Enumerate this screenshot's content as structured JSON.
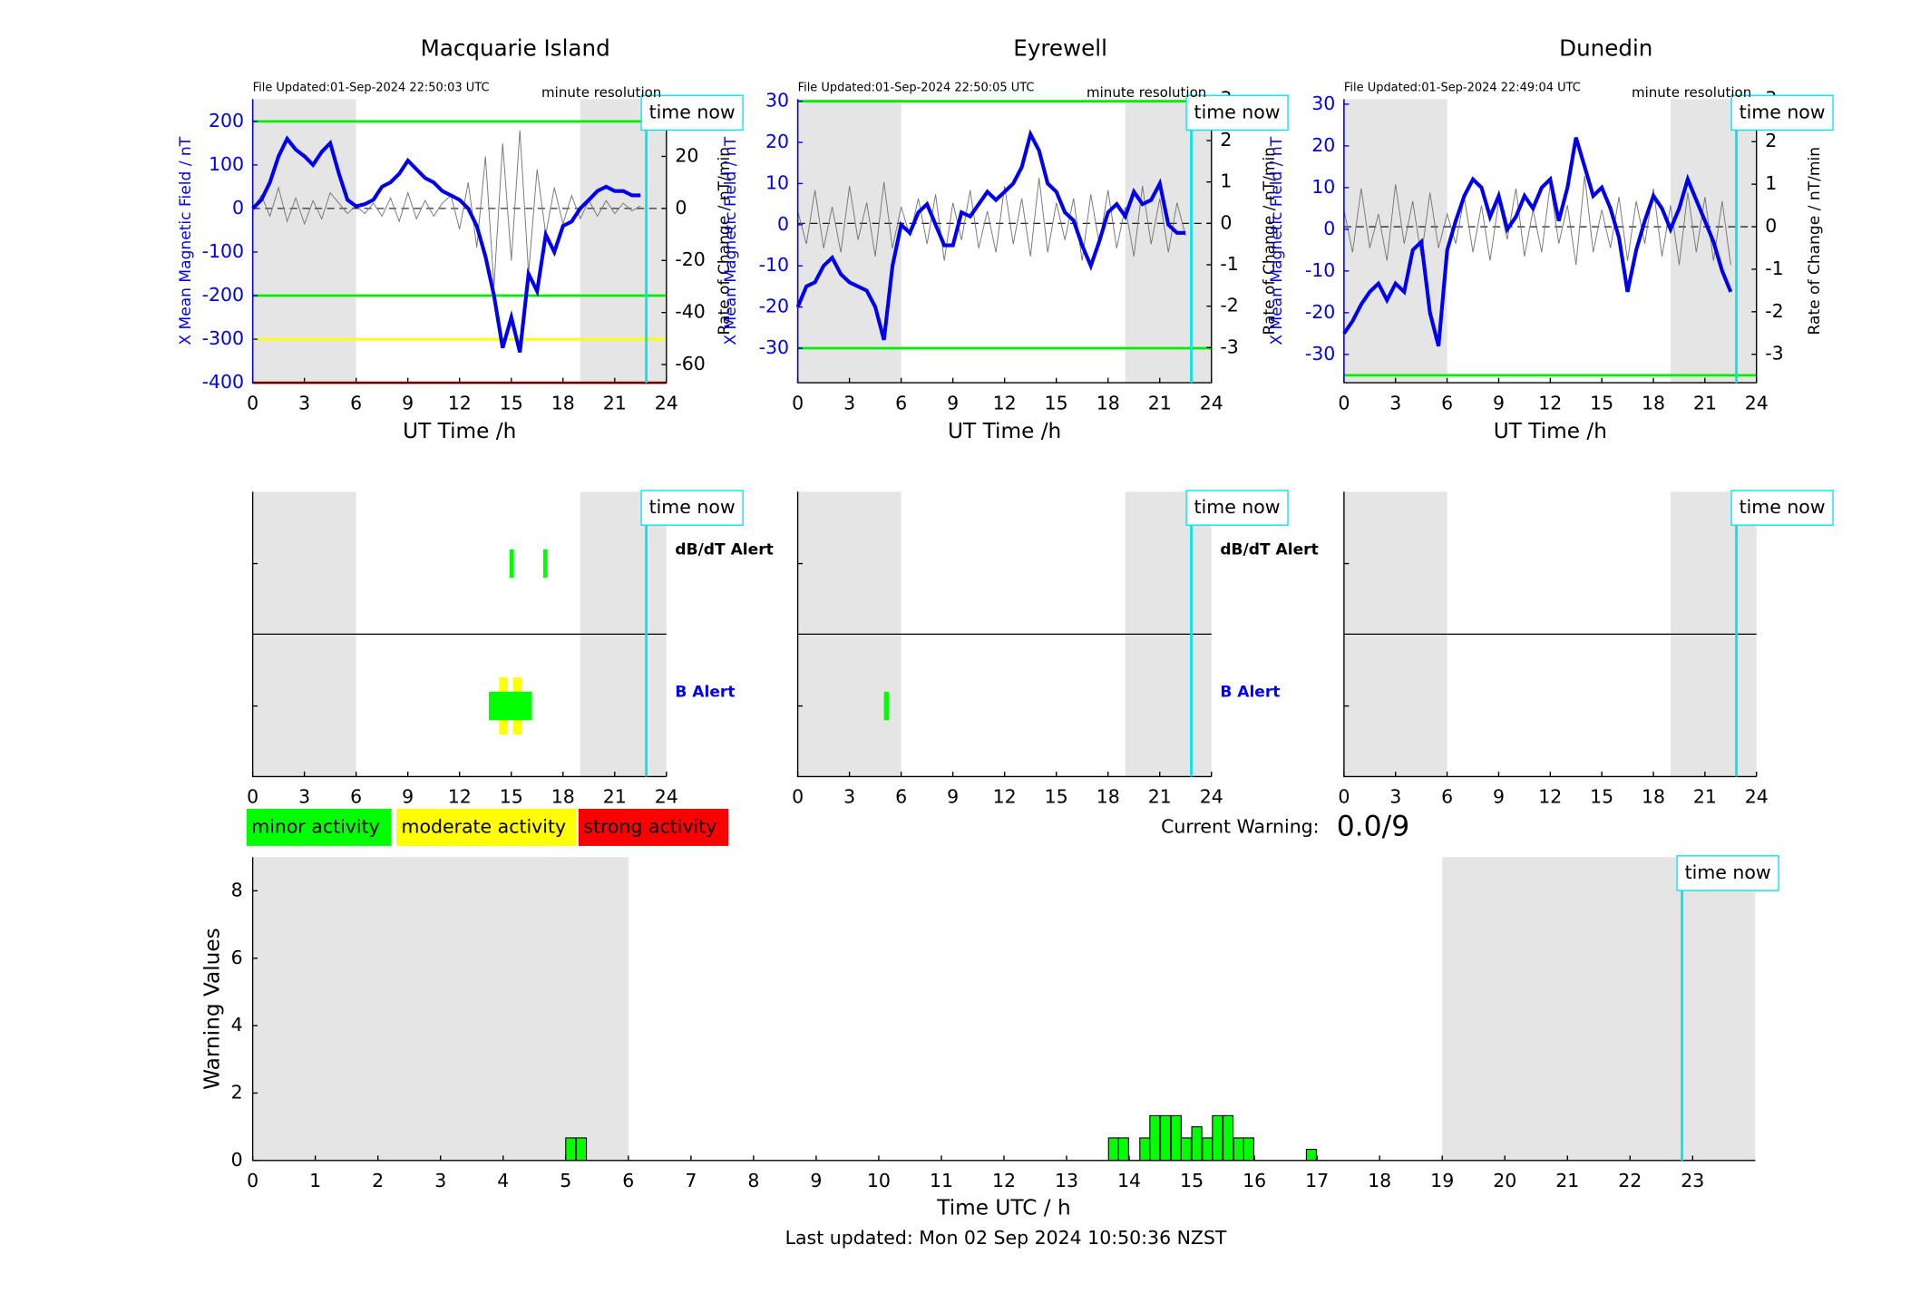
{
  "chart_data": [
    {
      "type": "line",
      "title": "Macquarie Island",
      "subtitle": "File Updated:01-Sep-2024 22:50:03 UTC",
      "annotation": "minute resolution",
      "time_now": 22.83,
      "time_now_label": "time now",
      "xlabel": "UT Time /h",
      "ylabel": "X Mean Magnetic Field / nT",
      "y2label": "Rate of Change / nT/min",
      "xlim": [
        0,
        24
      ],
      "xticks": [
        0,
        3,
        6,
        9,
        12,
        15,
        18,
        21,
        24
      ],
      "ylim": [
        -400,
        251
      ],
      "yticks": [
        -400,
        -300,
        -200,
        -100,
        0,
        100,
        200
      ],
      "y2lim": [
        -67,
        42
      ],
      "y2ticks": [
        -60,
        -40,
        -20,
        0,
        20,
        40
      ],
      "shaded": [
        [
          0,
          6
        ],
        [
          19,
          24
        ]
      ],
      "thresholds": [
        {
          "value": 200,
          "color": "#00ee00"
        },
        {
          "value": -200,
          "color": "#00ee00"
        },
        {
          "value": -300,
          "color": "#ffff00"
        },
        {
          "value": -400,
          "color": "#ff0000"
        }
      ],
      "x": [
        0,
        0.5,
        1,
        1.5,
        2,
        2.5,
        3,
        3.5,
        4,
        4.5,
        5,
        5.5,
        6,
        6.5,
        7,
        7.5,
        8,
        8.5,
        9,
        9.5,
        10,
        10.5,
        11,
        11.5,
        12,
        12.5,
        13,
        13.5,
        14,
        14.5,
        15,
        15.5,
        16,
        16.5,
        17,
        17.5,
        18,
        18.5,
        19,
        19.5,
        20,
        20.5,
        21,
        21.5,
        22,
        22.5
      ],
      "series": [
        {
          "color": "#777777",
          "axis": "y2",
          "values": [
            0,
            5,
            -3,
            8,
            -5,
            4,
            -6,
            3,
            -4,
            6,
            2,
            -2,
            1,
            -2,
            2,
            -3,
            4,
            -5,
            6,
            -4,
            3,
            -3,
            2,
            5,
            -8,
            10,
            -15,
            20,
            -30,
            25,
            -20,
            30,
            -25,
            15,
            -10,
            8,
            -6,
            5,
            -4,
            3,
            -3,
            3,
            -2,
            2,
            -1,
            1
          ]
        },
        {
          "color": "#0000ee",
          "values": [
            0,
            20,
            60,
            120,
            160,
            135,
            120,
            100,
            130,
            150,
            80,
            20,
            5,
            10,
            20,
            50,
            60,
            80,
            110,
            90,
            70,
            60,
            40,
            30,
            20,
            0,
            -40,
            -110,
            -200,
            -320,
            -250,
            -330,
            -150,
            -190,
            -60,
            -100,
            -40,
            -30,
            0,
            20,
            40,
            50,
            40,
            40,
            30,
            30
          ]
        }
      ]
    },
    {
      "type": "line",
      "title": "Eyrewell",
      "subtitle": "File Updated:01-Sep-2024 22:50:05 UTC",
      "annotation": "minute resolution",
      "time_now": 22.83,
      "time_now_label": "time now",
      "xlabel": "UT Time /h",
      "ylabel": "X Mean Magnetic Field / nT",
      "y2label": "Rate of Change / nT/min",
      "xlim": [
        0,
        24
      ],
      "xticks": [
        0,
        3,
        6,
        9,
        12,
        15,
        18,
        21,
        24
      ],
      "ylim": [
        -38.4,
        30.5
      ],
      "yticks": [
        -30,
        -20,
        -10,
        0,
        10,
        20,
        30
      ],
      "y2lim": [
        -3.85,
        3.0
      ],
      "y2ticks": [
        -3,
        -2,
        -1,
        0,
        1,
        2,
        3
      ],
      "shaded": [
        [
          0,
          6
        ],
        [
          19,
          24
        ]
      ],
      "thresholds": [
        {
          "value": 30,
          "color": "#00ee00"
        },
        {
          "value": -30,
          "color": "#00ee00"
        }
      ],
      "x": [
        0,
        0.5,
        1,
        1.5,
        2,
        2.5,
        3,
        3.5,
        4,
        4.5,
        5,
        5.5,
        6,
        6.5,
        7,
        7.5,
        8,
        8.5,
        9,
        9.5,
        10,
        10.5,
        11,
        11.5,
        12,
        12.5,
        13,
        13.5,
        14,
        14.5,
        15,
        15.5,
        16,
        16.5,
        17,
        17.5,
        18,
        18.5,
        19,
        19.5,
        20,
        20.5,
        21,
        21.5,
        22,
        22.5
      ],
      "series": [
        {
          "color": "#777777",
          "axis": "y2",
          "values": [
            0.3,
            -0.5,
            0.8,
            -0.6,
            0.4,
            -0.7,
            0.9,
            -0.4,
            0.5,
            -0.8,
            1.0,
            -0.6,
            0.4,
            -0.3,
            0.6,
            -0.5,
            0.7,
            -0.9,
            0.5,
            -0.4,
            0.8,
            -0.6,
            0.3,
            -0.7,
            0.9,
            -0.5,
            0.6,
            -0.8,
            1.1,
            -0.7,
            0.5,
            -0.4,
            0.6,
            -0.9,
            0.7,
            -0.5,
            0.8,
            -0.6,
            0.4,
            -0.8,
            0.9,
            -0.5,
            0.6,
            -0.7,
            0.5,
            -0.3
          ]
        },
        {
          "color": "#0000ee",
          "values": [
            -20,
            -15,
            -14,
            -10,
            -8,
            -12,
            -14,
            -15,
            -16,
            -20,
            -28,
            -10,
            0,
            -2,
            3,
            5,
            0,
            -5,
            -5,
            3,
            2,
            5,
            8,
            6,
            8,
            10,
            14,
            22,
            18,
            10,
            8,
            3,
            1,
            -5,
            -10,
            -4,
            3,
            5,
            2,
            8,
            5,
            6,
            10,
            0,
            -2,
            -2
          ]
        }
      ]
    },
    {
      "type": "line",
      "title": "Dunedin",
      "subtitle": "File Updated:01-Sep-2024 22:49:04 UTC",
      "annotation": "minute resolution",
      "time_now": 22.83,
      "time_now_label": "time now",
      "xlabel": "UT Time /h",
      "ylabel": "X Mean Magnetic Field / nT",
      "y2label": "Rate of Change / nT/min",
      "xlim": [
        0,
        24
      ],
      "xticks": [
        0,
        3,
        6,
        9,
        12,
        15,
        18,
        21,
        24
      ],
      "ylim": [
        -36.8,
        31.2
      ],
      "yticks": [
        -30,
        -20,
        -10,
        0,
        10,
        20,
        30
      ],
      "y2lim": [
        -3.67,
        3.0
      ],
      "y2ticks": [
        -3,
        -2,
        -1,
        0,
        1,
        2,
        3
      ],
      "shaded": [
        [
          0,
          6
        ],
        [
          19,
          24
        ]
      ],
      "thresholds": [
        {
          "value": -35,
          "color": "#00ee00"
        }
      ],
      "x": [
        0,
        0.5,
        1,
        1.5,
        2,
        2.5,
        3,
        3.5,
        4,
        4.5,
        5,
        5.5,
        6,
        6.5,
        7,
        7.5,
        8,
        8.5,
        9,
        9.5,
        10,
        10.5,
        11,
        11.5,
        12,
        12.5,
        13,
        13.5,
        14,
        14.5,
        15,
        15.5,
        16,
        16.5,
        17,
        17.5,
        18,
        18.5,
        19,
        19.5,
        20,
        20.5,
        21,
        21.5,
        22,
        22.5
      ],
      "series": [
        {
          "color": "#777777",
          "axis": "y2",
          "values": [
            0.4,
            -0.6,
            0.9,
            -0.5,
            0.3,
            -0.8,
            1.0,
            -0.4,
            0.6,
            -0.7,
            0.8,
            -0.5,
            0.3,
            -0.4,
            0.7,
            -0.6,
            0.5,
            -0.8,
            0.6,
            -0.3,
            0.9,
            -0.7,
            0.4,
            -0.6,
            1.0,
            -0.4,
            0.5,
            -0.9,
            1.2,
            -0.6,
            0.4,
            -0.5,
            0.7,
            -0.8,
            0.6,
            -0.4,
            0.9,
            -0.7,
            0.5,
            -0.9,
            0.8,
            -0.6,
            0.7,
            -0.8,
            0.6,
            -0.9
          ]
        },
        {
          "color": "#0000ee",
          "values": [
            -25,
            -22,
            -18,
            -15,
            -13,
            -17,
            -13,
            -15,
            -5,
            -3,
            -20,
            -28,
            -5,
            2,
            8,
            12,
            10,
            3,
            8,
            0,
            3,
            8,
            5,
            10,
            12,
            2,
            10,
            22,
            15,
            8,
            10,
            5,
            -2,
            -15,
            -5,
            2,
            8,
            5,
            0,
            5,
            12,
            7,
            2,
            -3,
            -10,
            -15
          ]
        }
      ]
    },
    {
      "type": "alert",
      "time_now": 22.83,
      "time_now_label": "time now",
      "xlim": [
        0,
        24
      ],
      "xticks": [
        0,
        3,
        6,
        9,
        12,
        15,
        18,
        21,
        24
      ],
      "shaded": [
        [
          0,
          6
        ],
        [
          19,
          24
        ]
      ],
      "rows": [
        {
          "label": "dB/dT Alert",
          "color": "#000000"
        },
        {
          "label": "B Alert",
          "color": "#0000ff"
        }
      ],
      "events": [
        {
          "row": 0,
          "start": 14.9,
          "end": 15.15,
          "color": "#00ff00"
        },
        {
          "row": 0,
          "start": 16.85,
          "end": 17.1,
          "color": "#00ff00"
        },
        {
          "row": 1,
          "start": 14.3,
          "end": 14.8,
          "color": "#ffff00"
        },
        {
          "row": 1,
          "start": 15.1,
          "end": 15.6,
          "color": "#ffff00"
        },
        {
          "row": 1,
          "start": 13.7,
          "end": 16.2,
          "color": "#00ff00"
        }
      ]
    },
    {
      "type": "alert",
      "time_now": 22.83,
      "time_now_label": "time now",
      "xlim": [
        0,
        24
      ],
      "xticks": [
        0,
        3,
        6,
        9,
        12,
        15,
        18,
        21,
        24
      ],
      "shaded": [
        [
          0,
          6
        ],
        [
          19,
          24
        ]
      ],
      "rows": [
        {
          "label": "dB/dT Alert",
          "color": "#000000"
        },
        {
          "label": "B Alert",
          "color": "#0000ff"
        }
      ],
      "events": [
        {
          "row": 1,
          "start": 5.0,
          "end": 5.3,
          "color": "#00ff00"
        }
      ]
    },
    {
      "type": "alert",
      "time_now": 22.83,
      "time_now_label": "time now",
      "xlim": [
        0,
        24
      ],
      "xticks": [
        0,
        3,
        6,
        9,
        12,
        15,
        18,
        21,
        24
      ],
      "shaded": [
        [
          0,
          6
        ],
        [
          19,
          24
        ]
      ],
      "rows": [],
      "events": []
    },
    {
      "type": "bar",
      "time_now": 22.83,
      "time_now_label": "time now",
      "xlabel": "Time UTC / h",
      "ylabel": "Warning Values",
      "xlim": [
        0,
        24
      ],
      "xticks": [
        0,
        1,
        2,
        3,
        4,
        5,
        6,
        7,
        8,
        9,
        10,
        11,
        12,
        13,
        14,
        15,
        16,
        17,
        18,
        19,
        20,
        21,
        22,
        23
      ],
      "ylim": [
        0,
        9
      ],
      "yticks": [
        0,
        2,
        4,
        6,
        8
      ],
      "shaded": [
        [
          0,
          6
        ],
        [
          19,
          24
        ]
      ],
      "color": "#00ff00",
      "x": [
        5.0,
        5.17,
        13.67,
        13.83,
        14.17,
        14.33,
        14.5,
        14.67,
        14.83,
        15.0,
        15.17,
        15.33,
        15.5,
        15.67,
        15.83,
        16.83
      ],
      "values": [
        0.67,
        0.67,
        0.67,
        0.67,
        0.67,
        1.33,
        1.33,
        1.33,
        0.67,
        1.0,
        0.67,
        1.33,
        1.33,
        0.67,
        0.67,
        0.33
      ]
    }
  ],
  "legend": [
    {
      "name": "minor activity",
      "color": "#00ff00"
    },
    {
      "name": "moderate activity",
      "color": "#ffff00"
    },
    {
      "name": "strong activity",
      "color": "#ff0000"
    }
  ],
  "status": {
    "label": "Current Warning:",
    "value": "0.0/9"
  },
  "footer": "Last updated: Mon 02 Sep 2024 10:50:36 NZST"
}
